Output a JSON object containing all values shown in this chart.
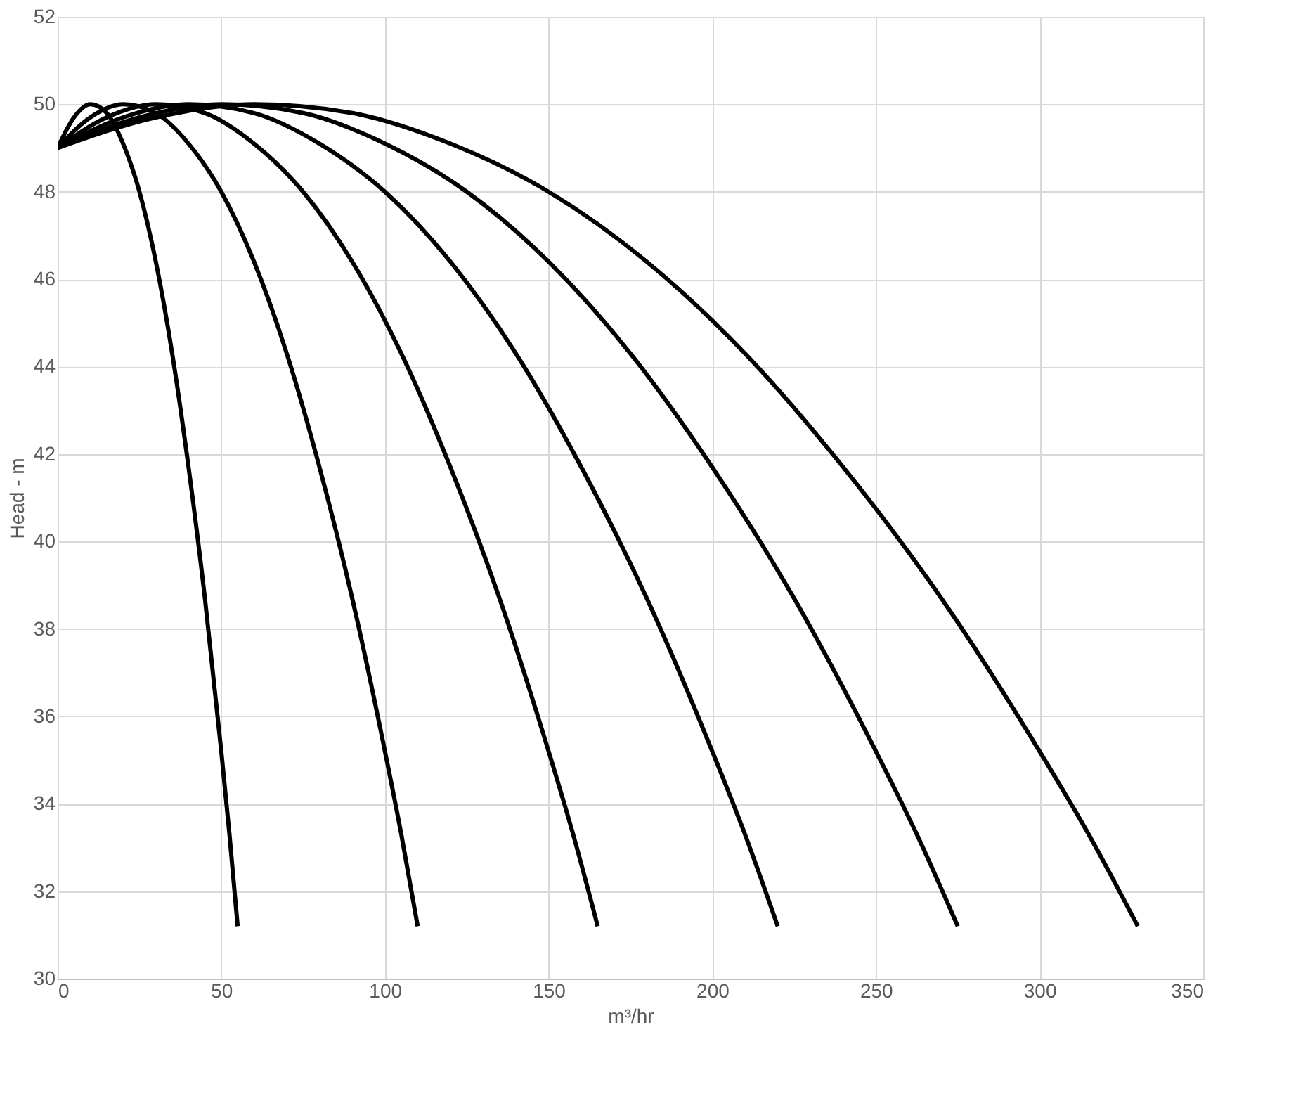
{
  "chart_data": {
    "type": "line",
    "xlabel": "m³/hr",
    "ylabel": "Head - m",
    "xlim": [
      0,
      350
    ],
    "xticks": [
      0,
      50,
      100,
      150,
      200,
      250,
      300,
      350
    ],
    "ylim": [
      30,
      52
    ],
    "yticks": [
      30,
      32,
      34,
      36,
      38,
      40,
      42,
      44,
      46,
      48,
      50,
      52
    ],
    "grid": true,
    "legend": false,
    "marker": "none",
    "line_style": "solid",
    "series": [
      {
        "color": "#000000",
        "x": [
          0,
          5,
          10,
          15,
          20,
          25,
          30,
          35,
          40,
          45,
          50,
          52.5,
          55
        ],
        "values": [
          49.0,
          49.7,
          50.0,
          49.8,
          49.1,
          48.0,
          46.4,
          44.3,
          41.7,
          38.7,
          35.2,
          33.3,
          31.2
        ]
      },
      {
        "color": "#000000",
        "x": [
          0,
          10,
          20,
          30,
          40,
          50,
          60,
          70,
          80,
          90,
          100,
          105,
          110
        ],
        "values": [
          49.0,
          49.7,
          50.0,
          49.8,
          49.1,
          48.0,
          46.4,
          44.3,
          41.7,
          38.7,
          35.2,
          33.3,
          31.2
        ]
      },
      {
        "color": "#000000",
        "x": [
          0,
          15,
          30,
          45,
          60,
          75,
          90,
          105,
          120,
          135,
          150,
          157.5,
          165
        ],
        "values": [
          49.0,
          49.7,
          50.0,
          49.8,
          49.1,
          48.0,
          46.4,
          44.3,
          41.7,
          38.7,
          35.2,
          33.3,
          31.2
        ]
      },
      {
        "color": "#000000",
        "x": [
          0,
          20,
          40,
          60,
          80,
          100,
          120,
          140,
          160,
          180,
          200,
          210,
          220
        ],
        "values": [
          49.0,
          49.7,
          50.0,
          49.8,
          49.1,
          48.0,
          46.4,
          44.3,
          41.7,
          38.7,
          35.2,
          33.3,
          31.2
        ]
      },
      {
        "color": "#000000",
        "x": [
          0,
          25,
          50,
          75,
          100,
          125,
          150,
          175,
          200,
          225,
          250,
          262.5,
          275
        ],
        "values": [
          49.0,
          49.7,
          50.0,
          49.8,
          49.1,
          48.0,
          46.4,
          44.3,
          41.7,
          38.7,
          35.2,
          33.3,
          31.2
        ]
      },
      {
        "color": "#000000",
        "x": [
          0,
          30,
          60,
          90,
          120,
          150,
          180,
          210,
          240,
          270,
          300,
          315,
          330
        ],
        "values": [
          49.0,
          49.7,
          50.0,
          49.8,
          49.1,
          48.0,
          46.4,
          44.3,
          41.7,
          38.7,
          35.2,
          33.3,
          31.2
        ]
      }
    ]
  }
}
